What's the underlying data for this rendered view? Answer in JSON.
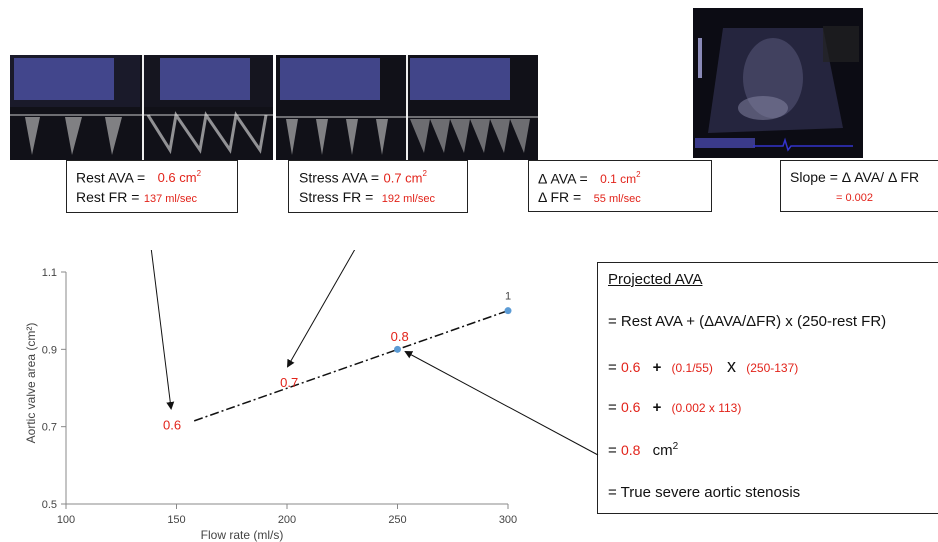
{
  "panels": {
    "rest": {
      "avaLabel": "Rest AVA =",
      "avaValue": "0.6 cm",
      "frLabel": "Rest FR =",
      "frValue": "137 ml/sec"
    },
    "stress": {
      "avaLabel": "Stress AVA =",
      "avaValue": "0.7 cm",
      "frLabel": "Stress FR =",
      "frValue": "192 ml/sec"
    },
    "delta": {
      "avaLabel": "Δ AVA =",
      "avaValue": "0.1 cm",
      "frLabel": "Δ FR =",
      "frValue": "55 ml/sec"
    },
    "slope": {
      "label": "Slope = Δ AVA/ Δ FR",
      "value": "= 0.002"
    },
    "sup": "2"
  },
  "projected": {
    "title": "Projected AVA",
    "formula": "= Rest AVA + (ΔAVA/ΔFR) x (250-rest FR)",
    "step1": {
      "eq": "=",
      "a": "0.6",
      "plus": "+",
      "b": "(0.1/55)",
      "x": "x",
      "c": "(250-137)"
    },
    "step2": {
      "eq": "=",
      "a": "0.6",
      "plus": "+",
      "b": "(0.002 x 113)"
    },
    "step3": {
      "eq": "=",
      "a": "0.8",
      "unit": "cm",
      "sup": "2"
    },
    "conclusion": "= True severe aortic stenosis"
  },
  "chart_data": {
    "type": "scatter",
    "xlabel": "Flow rate (ml/s)",
    "ylabel": "Aortic valve area (cm²)",
    "xlim": [
      100,
      300
    ],
    "ylim": [
      0.5,
      1.1
    ],
    "xticks": [
      100,
      150,
      200,
      250,
      300
    ],
    "yticks": [
      0.5,
      0.7,
      0.9,
      1.1
    ],
    "points": [
      {
        "x": 250,
        "y": 0.9
      },
      {
        "x": 300,
        "y": 1.0,
        "label": "1"
      }
    ],
    "trendline": [
      [
        158,
        0.715
      ],
      [
        300,
        1.0
      ]
    ],
    "annotations": [
      {
        "text": "0.6",
        "x": 148,
        "y": 0.705
      },
      {
        "text": "0.7",
        "x": 201,
        "y": 0.815
      },
      {
        "text": "0.8",
        "x": 251,
        "y": 0.935
      }
    ],
    "colors": {
      "points": "#5b9bd5",
      "annotations": "#e2231a",
      "line": "#111111"
    }
  }
}
